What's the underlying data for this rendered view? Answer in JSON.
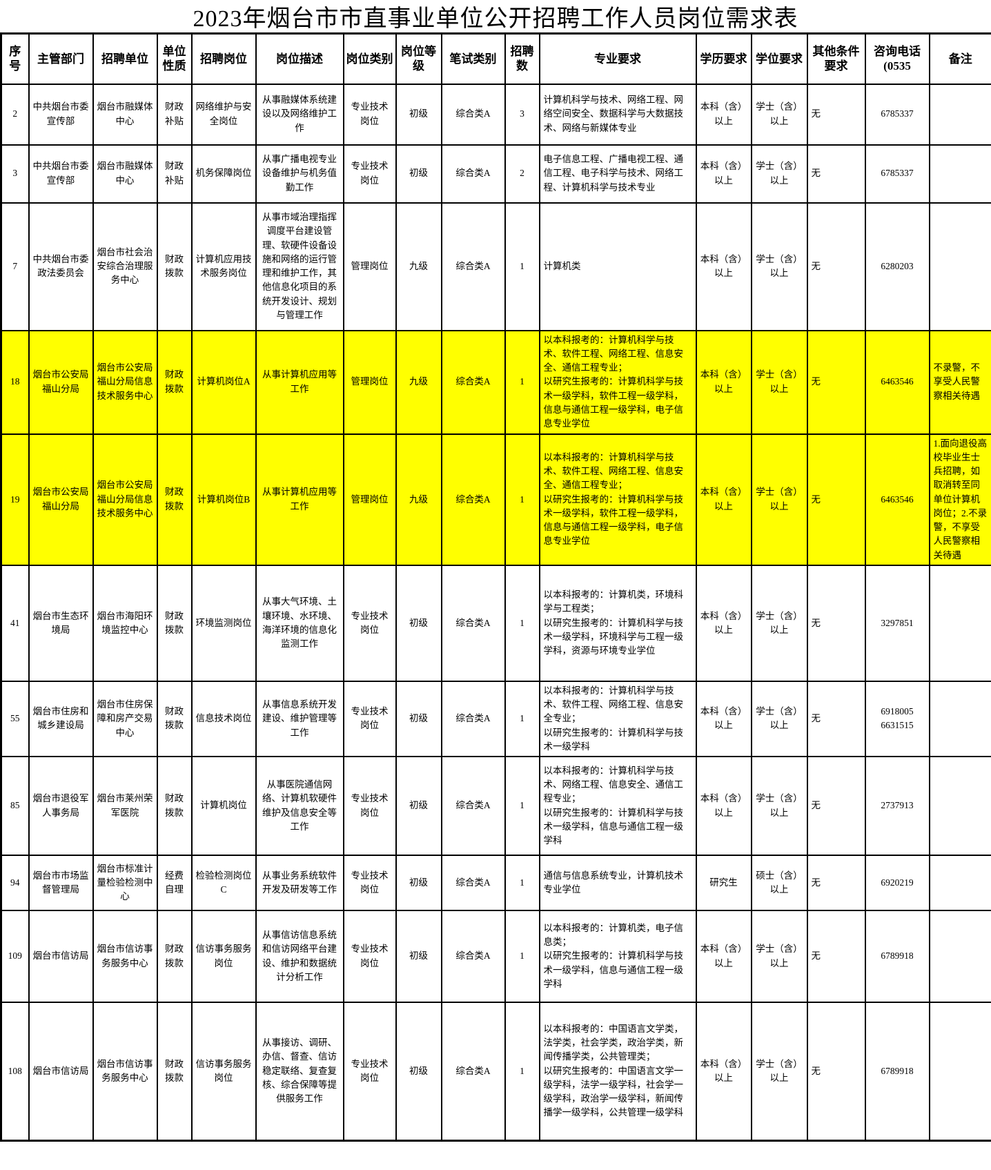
{
  "title": "2023年烟台市市直事业单位公开招聘工作人员岗位需求表",
  "colors": {
    "highlight": "#ffff00",
    "border": "#000000",
    "background": "#ffffff"
  },
  "table": {
    "columns": [
      "序号",
      "主管部门",
      "招聘单位",
      "单位性质",
      "招聘岗位",
      "岗位描述",
      "岗位类别",
      "岗位等级",
      "笔试类别",
      "招聘数",
      "专业要求",
      "学历要求",
      "学位要求",
      "其他条件要求",
      "咨询电话(0535",
      "备注"
    ],
    "rows": [
      {
        "highlight": false,
        "cells": [
          "2",
          "中共烟台市委宣传部",
          "烟台市融媒体中心",
          "财政补贴",
          "网络维护与安全岗位",
          "从事融媒体系统建设以及网络维护工作",
          "专业技术岗位",
          "初级",
          "综合类A",
          "3",
          "计算机科学与技术、网络工程、网络空间安全、数据科学与大数据技术、网络与新媒体专业",
          "本科（含）以上",
          "学士（含）以上",
          "无",
          "6785337",
          ""
        ]
      },
      {
        "highlight": false,
        "cells": [
          "3",
          "中共烟台市委宣传部",
          "烟台市融媒体中心",
          "财政补贴",
          "机务保障岗位",
          "从事广播电视专业设备维护与机务值勤工作",
          "专业技术岗位",
          "初级",
          "综合类A",
          "2",
          "电子信息工程、广播电视工程、通信工程、电子科学与技术、网络工程、计算机科学与技术专业",
          "本科（含）以上",
          "学士（含）以上",
          "无",
          "6785337",
          ""
        ]
      },
      {
        "highlight": false,
        "cells": [
          "7",
          "中共烟台市委政法委员会",
          "烟台市社会治安综合治理服务中心",
          "财政拨款",
          "计算机应用技术服务岗位",
          "从事市域治理指挥调度平台建设管理、软硬件设备设施和网络的运行管理和维护工作，其他信息化项目的系统开发设计、规划与管理工作",
          "管理岗位",
          "九级",
          "综合类A",
          "1",
          "计算机类",
          "本科（含）以上",
          "学士（含）以上",
          "无",
          "6280203",
          ""
        ]
      },
      {
        "highlight": true,
        "cells": [
          "18",
          "烟台市公安局福山分局",
          "烟台市公安局福山分局信息技术服务中心",
          "财政拨款",
          "计算机岗位A",
          "从事计算机应用等工作",
          "管理岗位",
          "九级",
          "综合类A",
          "1",
          "以本科报考的：计算机科学与技术、软件工程、网络工程、信息安全、通信工程专业；\n以研究生报考的：计算机科学与技术一级学科，软件工程一级学科，信息与通信工程一级学科，电子信息专业学位",
          "本科（含）以上",
          "学士（含）以上",
          "无",
          "6463546",
          "不录警，不享受人民警察相关待遇"
        ]
      },
      {
        "highlight": true,
        "cells": [
          "19",
          "烟台市公安局福山分局",
          "烟台市公安局福山分局信息技术服务中心",
          "财政拨款",
          "计算机岗位B",
          "从事计算机应用等工作",
          "管理岗位",
          "九级",
          "综合类A",
          "1",
          "以本科报考的：计算机科学与技术、软件工程、网络工程、信息安全、通信工程专业；\n以研究生报考的：计算机科学与技术一级学科，软件工程一级学科，信息与通信工程一级学科，电子信息专业学位",
          "本科（含）以上",
          "学士（含）以上",
          "无",
          "6463546",
          "1.面向退役高校毕业生士兵招聘，如取消转至同单位计算机岗位；2.不录警，不享受人民警察相关待遇"
        ]
      },
      {
        "highlight": false,
        "cells": [
          "41",
          "烟台市生态环境局",
          "烟台市海阳环境监控中心",
          "财政拨款",
          "环境监测岗位",
          "从事大气环境、土壤环境、水环境、海洋环境的信息化监测工作",
          "专业技术岗位",
          "初级",
          "综合类A",
          "1",
          "以本科报考的：计算机类，环境科学与工程类；\n以研究生报考的：计算机科学与技术一级学科，环境科学与工程一级学科，资源与环境专业学位",
          "本科（含）以上",
          "学士（含）以上",
          "无",
          "3297851",
          ""
        ]
      },
      {
        "highlight": false,
        "cells": [
          "55",
          "烟台市住房和城乡建设局",
          "烟台市住房保障和房产交易中心",
          "财政拨款",
          "信息技术岗位",
          "从事信息系统开发建设、维护管理等工作",
          "专业技术岗位",
          "初级",
          "综合类A",
          "1",
          "以本科报考的：计算机科学与技术、软件工程、网络工程、信息安全专业；\n以研究生报考的：计算机科学与技术一级学科",
          "本科（含）以上",
          "学士（含）以上",
          "无",
          "6918005\n6631515",
          ""
        ]
      },
      {
        "highlight": false,
        "cells": [
          "85",
          "烟台市退役军人事务局",
          "烟台市莱州荣军医院",
          "财政拨款",
          "计算机岗位",
          "从事医院通信网络、计算机软硬件维护及信息安全等工作",
          "专业技术岗位",
          "初级",
          "综合类A",
          "1",
          "以本科报考的：计算机科学与技术、网络工程、信息安全、通信工程专业；\n以研究生报考的：计算机科学与技术一级学科，信息与通信工程一级学科",
          "本科（含）以上",
          "学士（含）以上",
          "无",
          "2737913",
          ""
        ]
      },
      {
        "highlight": false,
        "cells": [
          "94",
          "烟台市市场监督管理局",
          "烟台市标准计量检验检测中心",
          "经费自理",
          "检验检测岗位C",
          "从事业务系统软件开发及研发等工作",
          "专业技术岗位",
          "初级",
          "综合类A",
          "1",
          "通信与信息系统专业，计算机技术专业学位",
          "研究生",
          "硕士（含）以上",
          "无",
          "6920219",
          ""
        ]
      },
      {
        "highlight": false,
        "cells": [
          "109",
          "烟台市信访局",
          "烟台市信访事务服务中心",
          "财政拨款",
          "信访事务服务岗位",
          "从事信访信息系统和信访网络平台建设、维护和数据统计分析工作",
          "专业技术岗位",
          "初级",
          "综合类A",
          "1",
          "以本科报考的：计算机类，电子信息类；\n以研究生报考的：计算机科学与技术一级学科，信息与通信工程一级学科",
          "本科（含）以上",
          "学士（含）以上",
          "无",
          "6789918",
          ""
        ]
      },
      {
        "highlight": false,
        "cells": [
          "108",
          "烟台市信访局",
          "烟台市信访事务服务中心",
          "财政拨款",
          "信访事务服务岗位",
          "从事接访、调研、办信、督查、信访稳定联络、复查复核、综合保障等提供服务工作",
          "专业技术岗位",
          "初级",
          "综合类A",
          "1",
          "以本科报考的：中国语言文学类，法学类，社会学类，政治学类，新闻传播学类，公共管理类；\n以研究生报考的：中国语言文学一级学科，法学一级学科，社会学一级学科，政治学一级学科，新闻传播学一级学科，公共管理一级学科",
          "本科（含）以上",
          "学士（含）以上",
          "无",
          "6789918",
          ""
        ]
      }
    ]
  }
}
